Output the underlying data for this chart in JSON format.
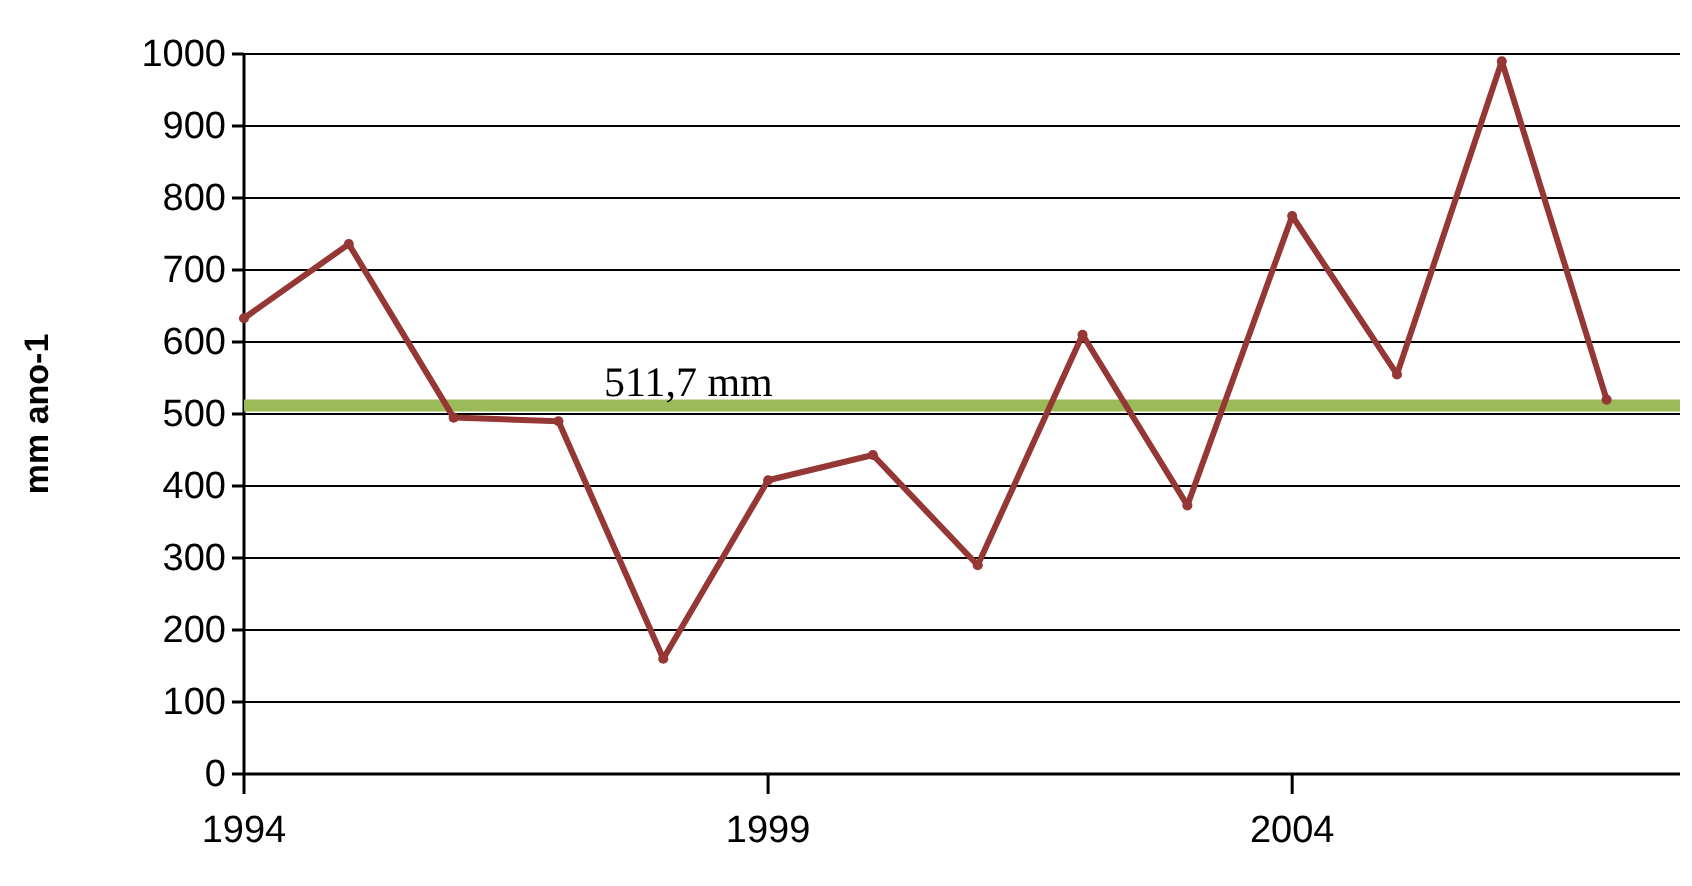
{
  "chart_data": {
    "type": "line",
    "ylabel": "mm ano-1",
    "x": [
      1994,
      1995,
      1996,
      1997,
      1998,
      1999,
      2000,
      2001,
      2002,
      2003,
      2004,
      2005,
      2006,
      2007
    ],
    "series": [
      {
        "color": "#953735",
        "values": [
          633,
          736,
          495,
          490,
          160,
          408,
          443,
          290,
          610,
          373,
          775,
          555,
          990,
          520
        ]
      }
    ],
    "xlim": [
      1994,
      2007.7
    ],
    "xticks": [
      1994,
      1999,
      2004
    ],
    "ylim": [
      0,
      1000
    ],
    "yticks": [
      0,
      100,
      200,
      300,
      400,
      500,
      600,
      700,
      800,
      900,
      1000
    ],
    "grid": "y",
    "marker": "circle",
    "line_style": "solid",
    "ref_lines": [
      {
        "axis": "y",
        "value": 511.7,
        "label": "511,7 mm",
        "color": "#9bbb59"
      }
    ]
  }
}
